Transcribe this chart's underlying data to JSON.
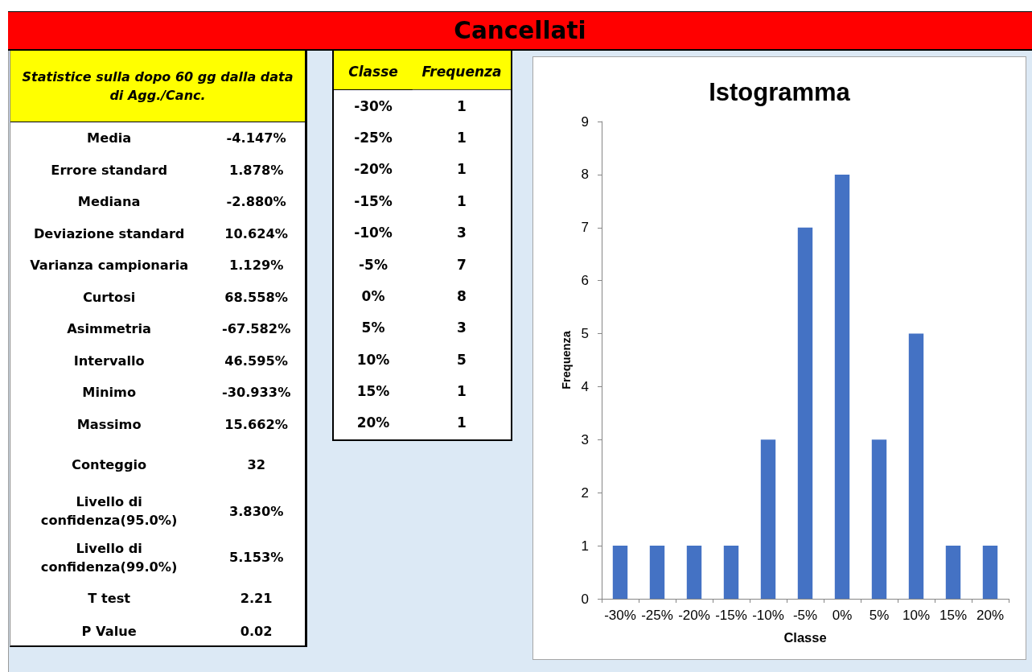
{
  "chart_data": [
    {
      "type": "other",
      "title": "Cancellati",
      "subtitle": "Statistice sulla dopo 60 gg dalla data di Agg./Canc.",
      "annotations": [
        "Media",
        "-4.147%",
        "Errore standard",
        "1.878%",
        "Mediana",
        "-2.880%",
        "Deviazione standard",
        "10.624%",
        "Varianza campionaria",
        "1.129%",
        "Curtosi",
        "68.558%",
        "Asimmetria",
        "-67.582%",
        "Intervallo",
        "46.595%",
        "Minimo",
        "-30.933%",
        "Massimo",
        "15.662%",
        "Conteggio",
        "32",
        "Livello di confidenza(95.0%)",
        "3.830%",
        "Livello di confidenza(99.0%)",
        "5.153%",
        "T test",
        "2.21",
        "P Value",
        "0.02"
      ]
    },
    {
      "type": "heatmap",
      "ylabel": "Classe",
      "categories": [
        "Frequenza"
      ],
      "y_categories": [
        "-30%",
        "-25%",
        "-20%",
        "-15%",
        "-10%",
        "-5%",
        "0%",
        "5%",
        "10%",
        "15%",
        "20%"
      ],
      "cells": [
        [
          1
        ],
        [
          1
        ],
        [
          1
        ],
        [
          1
        ],
        [
          3
        ],
        [
          7
        ],
        [
          8
        ],
        [
          3
        ],
        [
          5
        ],
        [
          1
        ],
        [
          1
        ]
      ],
      "data_labels": true
    },
    {
      "type": "bar",
      "title": "Istogramma",
      "xlabel": "Classe",
      "ylabel": "Frequenza",
      "categories": [
        "-30%",
        "-25%",
        "-20%",
        "-15%",
        "-10%",
        "-5%",
        "0%",
        "5%",
        "10%",
        "15%",
        "20%"
      ],
      "values": [
        1,
        1,
        1,
        1,
        3,
        7,
        8,
        3,
        5,
        1,
        1
      ],
      "color": "#4472c4",
      "ylim": [
        0,
        9
      ],
      "yticks": [
        0,
        1,
        2,
        3,
        4,
        5,
        6,
        7,
        8,
        9
      ]
    }
  ]
}
